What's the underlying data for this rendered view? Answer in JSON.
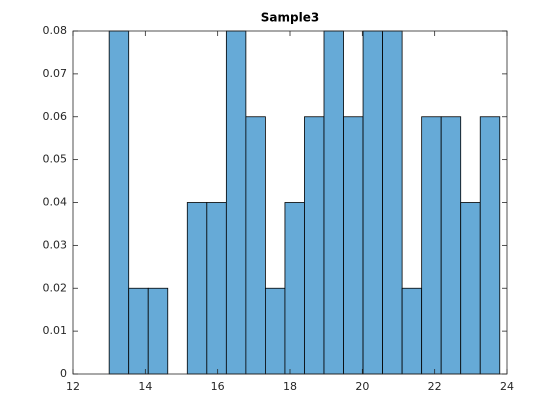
{
  "chart_data": {
    "type": "histogram",
    "title": "Sample3",
    "bins": [
      13,
      13.54,
      14.08,
      14.62,
      15.16,
      15.7,
      16.24,
      16.78,
      17.32,
      17.86,
      18.4,
      18.94,
      19.48,
      20.02,
      20.56,
      21.1,
      21.64,
      22.18,
      22.72,
      23.26,
      23.8
    ],
    "values": [
      0.08,
      0.02,
      0.02,
      0,
      0.04,
      0.04,
      0.08,
      0.06,
      0.02,
      0.04,
      0.06,
      0.08,
      0.06,
      0.08,
      0.08,
      0.02,
      0.06,
      0.06,
      0.04,
      0.06
    ],
    "color": "#66aad7",
    "xlim": [
      12,
      24
    ],
    "xticks": [
      12,
      14,
      16,
      18,
      20,
      22,
      24
    ],
    "ylim": [
      0,
      0.08
    ],
    "yticks": [
      0,
      0.01,
      0.02,
      0.03,
      0.04,
      0.05,
      0.06,
      0.07,
      0.08
    ]
  }
}
